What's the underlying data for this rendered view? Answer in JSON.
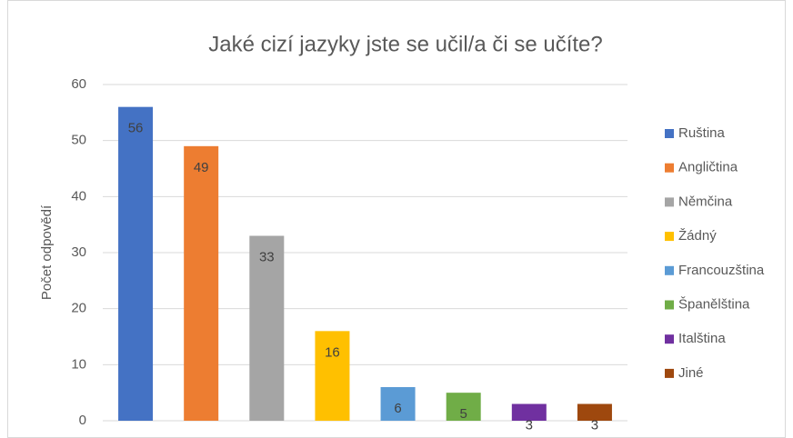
{
  "chart_data": {
    "type": "bar",
    "title": "Jaké cizí jazyky jste se učil/a či se učíte?",
    "ylabel": "Počet odpovědí",
    "series": [
      {
        "name": "Ruština",
        "color": "#4472c4",
        "values": [
          56
        ]
      },
      {
        "name": "Angličtina",
        "color": "#ed7d31",
        "values": [
          49
        ]
      },
      {
        "name": "Němčina",
        "color": "#a5a5a5",
        "values": [
          33
        ]
      },
      {
        "name": "Žádný",
        "color": "#ffc000",
        "values": [
          16
        ]
      },
      {
        "name": "Francouzština",
        "color": "#5b9bd5",
        "values": [
          6
        ]
      },
      {
        "name": "Španělština",
        "color": "#70ad47",
        "values": [
          5
        ]
      },
      {
        "name": "Italština",
        "color": "#7030a0",
        "values": [
          3
        ]
      },
      {
        "name": "Jiné",
        "color": "#9e480e",
        "values": [
          3
        ]
      }
    ],
    "ylim": [
      0,
      60
    ],
    "yticks": [
      0,
      10,
      20,
      30,
      40,
      50,
      60
    ],
    "grid": true,
    "legend": "right"
  }
}
